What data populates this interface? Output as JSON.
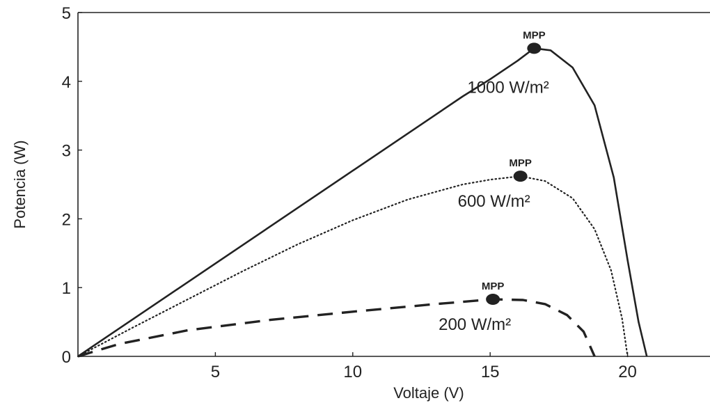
{
  "chart_data": {
    "type": "line",
    "title": "",
    "xlabel": "Voltaje (V)",
    "ylabel": "Potencia (W)",
    "xlim": [
      0,
      23
    ],
    "ylim": [
      0,
      5
    ],
    "xticks": [
      5,
      10,
      15,
      20
    ],
    "yticks": [
      0,
      1,
      2,
      3,
      4,
      5
    ],
    "grid": false,
    "legend": "none",
    "series": [
      {
        "label": "1000 W/m²",
        "line_style": "solid",
        "color": "#222222",
        "points": [
          [
            0,
            0
          ],
          [
            2,
            0.54
          ],
          [
            4,
            1.08
          ],
          [
            6,
            1.62
          ],
          [
            8,
            2.16
          ],
          [
            10,
            2.7
          ],
          [
            12,
            3.24
          ],
          [
            14,
            3.78
          ],
          [
            15,
            4.03
          ],
          [
            16,
            4.3
          ],
          [
            16.6,
            4.48
          ],
          [
            17.2,
            4.45
          ],
          [
            18,
            4.2
          ],
          [
            18.8,
            3.65
          ],
          [
            19.5,
            2.6
          ],
          [
            20,
            1.4
          ],
          [
            20.4,
            0.5
          ],
          [
            20.7,
            0
          ]
        ],
        "mpp": [
          16.6,
          4.48
        ],
        "mpp_label": "MPP"
      },
      {
        "label": "600 W/m²",
        "line_style": "dotted",
        "color": "#222222",
        "points": [
          [
            0,
            0
          ],
          [
            2,
            0.42
          ],
          [
            4,
            0.83
          ],
          [
            6,
            1.24
          ],
          [
            8,
            1.63
          ],
          [
            10,
            1.98
          ],
          [
            12,
            2.28
          ],
          [
            14,
            2.5
          ],
          [
            15,
            2.57
          ],
          [
            16.1,
            2.62
          ],
          [
            17,
            2.55
          ],
          [
            18,
            2.3
          ],
          [
            18.8,
            1.85
          ],
          [
            19.4,
            1.25
          ],
          [
            19.8,
            0.55
          ],
          [
            20,
            0
          ]
        ],
        "mpp": [
          16.1,
          2.62
        ],
        "mpp_label": "MPP"
      },
      {
        "label": "200 W/m²",
        "line_style": "dashed",
        "color": "#222222",
        "points": [
          [
            0,
            0
          ],
          [
            1.5,
            0.18
          ],
          [
            4,
            0.38
          ],
          [
            7,
            0.53
          ],
          [
            10,
            0.65
          ],
          [
            13,
            0.76
          ],
          [
            15.1,
            0.83
          ],
          [
            16.2,
            0.82
          ],
          [
            17,
            0.76
          ],
          [
            17.8,
            0.6
          ],
          [
            18.4,
            0.36
          ],
          [
            18.8,
            0
          ]
        ],
        "mpp": [
          15.1,
          0.83
        ],
        "mpp_label": "MPP"
      }
    ]
  }
}
